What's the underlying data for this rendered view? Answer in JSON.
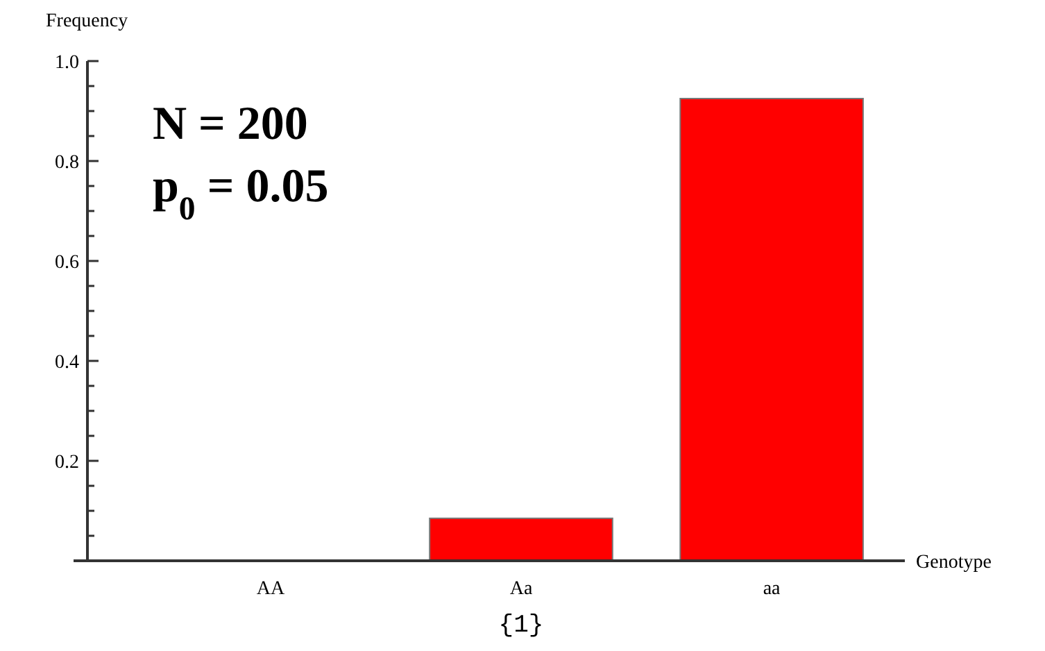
{
  "chart_data": {
    "type": "bar",
    "xlabel": "Genotype",
    "ylabel": "Frequency",
    "categories": [
      "AA",
      "Aa",
      "aa"
    ],
    "values": [
      0,
      0.085,
      0.925
    ],
    "color": "#ff0000",
    "ylim": [
      0,
      1.0
    ],
    "yticks": [
      {
        "value": 0.05,
        "label": null
      },
      {
        "value": 0.1,
        "label": null
      },
      {
        "value": 0.15,
        "label": null
      },
      0.2,
      {
        "value": 0.25,
        "label": null
      },
      {
        "value": 0.3,
        "label": null
      },
      {
        "value": 0.35,
        "label": null
      },
      0.4,
      {
        "value": 0.45,
        "label": null
      },
      {
        "value": 0.5,
        "label": null
      },
      {
        "value": 0.55,
        "label": null
      },
      0.6,
      {
        "value": 0.65,
        "label": null
      },
      {
        "value": 0.7,
        "label": null
      },
      {
        "value": 0.75,
        "label": null
      },
      0.8,
      {
        "value": 0.85,
        "label": null
      },
      {
        "value": 0.9,
        "label": null
      },
      {
        "value": 0.95,
        "label": null
      },
      {
        "value": 1.0,
        "label": "1.0"
      }
    ],
    "annotations": [
      "N = 200",
      "p$_{0}$ = 0.05",
      "{1}"
    ],
    "grid": false
  }
}
